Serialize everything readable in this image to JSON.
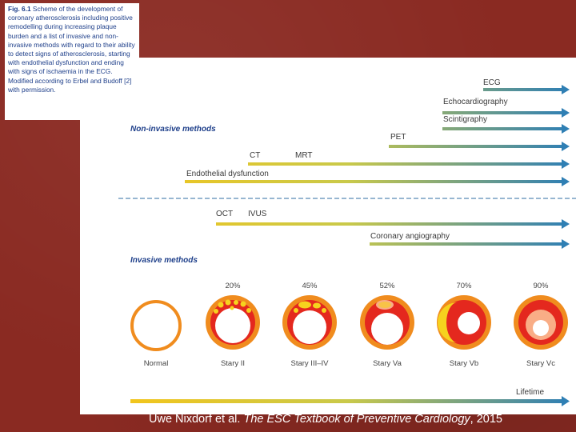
{
  "caption": {
    "fig_label": "Fig. 6.1",
    "text": "Scheme of the development of coronary atherosclerosis including positive remodelling during increasing plaque burden and a list of invasive and non-invasive methods with regard to their ability to detect signs of atherosclerosis, starting with endothelial dysfunction and ending with signs of ischaemia in the ECG. Modified according to Erbel and Budoff [2] with permission."
  },
  "sections": {
    "non_invasive": "Non-invasive methods",
    "invasive": "Invasive methods"
  },
  "methods": {
    "ecg": "ECG",
    "echo": "Echocardiography",
    "scint": "Scintigraphy",
    "pet": "PET",
    "ct": "CT",
    "mrt": "MRT",
    "endothelial": "Endothelial dysfunction",
    "oct": "OCT",
    "ivus": "IVUS",
    "coronary": "Coronary angiography"
  },
  "stages": [
    {
      "label": "Normal",
      "percent": ""
    },
    {
      "label": "Stary II",
      "percent": "20%"
    },
    {
      "label": "Stary III–IV",
      "percent": "45%"
    },
    {
      "label": "Stary Va",
      "percent": "52%"
    },
    {
      "label": "Stary Vb",
      "percent": "70%"
    },
    {
      "label": "Stary Vc",
      "percent": "90%"
    }
  ],
  "lifetime": "Lifetime",
  "citation": {
    "authors": "Uwe Nixdorf et al. ",
    "title": "The ESC Textbook of Preventive Cardiology",
    "year": ", 2015"
  },
  "colors": {
    "background": "#8a2a22",
    "arrow_start": "#f2c51c",
    "arrow_end": "#2f7fb4",
    "caption_text": "#1e3f8a",
    "artery_orange": "#f08c1e",
    "artery_red": "#e4281e",
    "plaque_yellow": "#f6d21e"
  }
}
